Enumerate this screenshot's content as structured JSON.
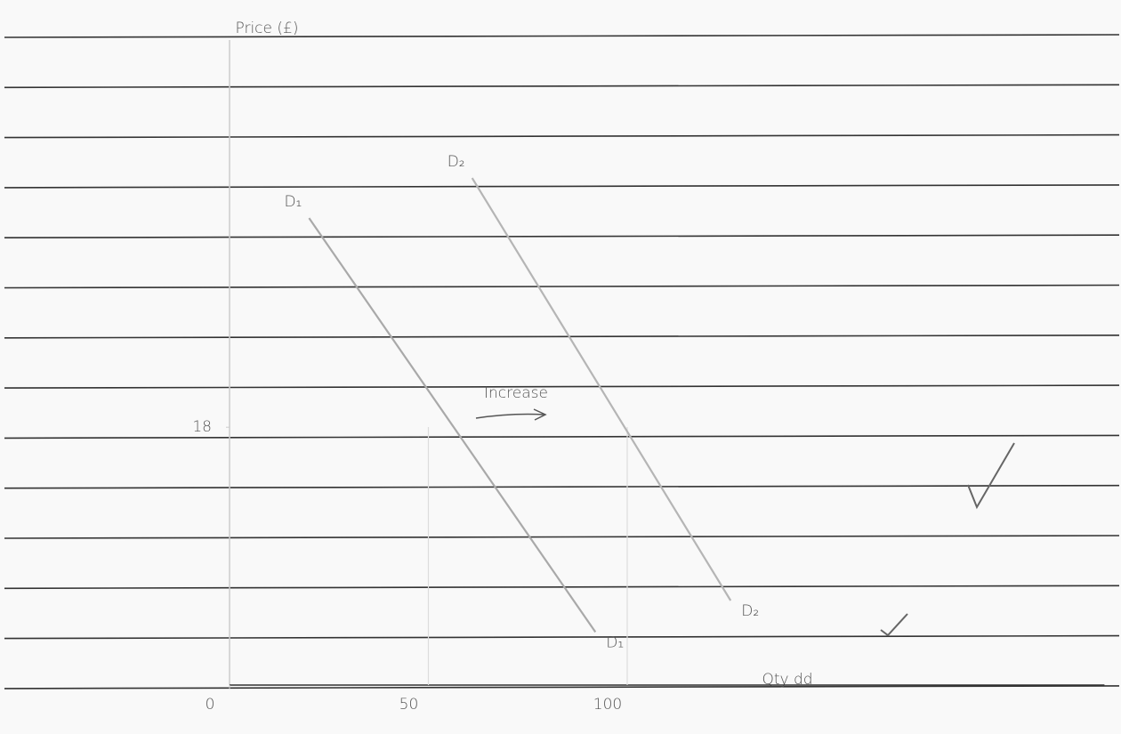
{
  "chart_data": {
    "type": "line",
    "ylabel": "Price (£)",
    "xlabel": "Qty dd",
    "xlim": [
      0,
      220
    ],
    "ylim": [
      0,
      45
    ],
    "xticks": [
      0,
      50,
      100
    ],
    "yticks": [
      18
    ],
    "series": [
      {
        "name": "D₁",
        "color": "#a9a9a9",
        "x": [
          20,
          92
        ],
        "values": [
          32.6,
          3.7
        ]
      },
      {
        "name": "D₂",
        "color": "#b5b5b5",
        "x": [
          61,
          126
        ],
        "values": [
          35.4,
          5.9
        ]
      }
    ],
    "annotations": [
      {
        "text": "Increase"
      }
    ]
  }
}
